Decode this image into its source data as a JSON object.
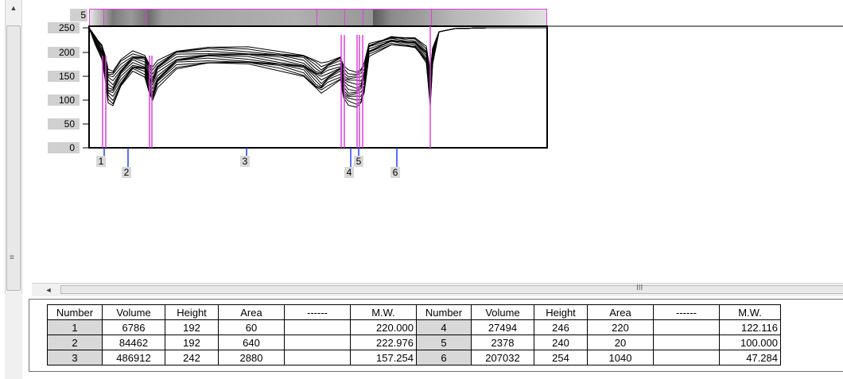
{
  "lane": {
    "number": "5"
  },
  "y_axis": {
    "ticks": [
      "250",
      "200",
      "150",
      "100",
      "50",
      "0"
    ]
  },
  "bands": [
    "1",
    "2",
    "3",
    "4",
    "5",
    "6"
  ],
  "table": {
    "headers": [
      "Number",
      "Volume",
      "Height",
      "Area",
      "------",
      "M.W.",
      "Number",
      "Volume",
      "Height",
      "Area",
      "------",
      "M.W."
    ],
    "rows": [
      [
        "1",
        "6786",
        "192",
        "60",
        "",
        "220.000",
        "4",
        "27494",
        "246",
        "220",
        "",
        "122.116"
      ],
      [
        "2",
        "84462",
        "192",
        "640",
        "",
        "222.976",
        "5",
        "2378",
        "240",
        "20",
        "",
        "100.000"
      ],
      [
        "3",
        "486912",
        "242",
        "2880",
        "",
        "157.254",
        "6",
        "207032",
        "254",
        "1040",
        "",
        "47.284"
      ]
    ]
  },
  "scrollbar": {
    "grip_glyph": "≡",
    "h_grip_glyph": "III",
    "up_arrow": "▲",
    "left_arrow": "◄"
  }
}
